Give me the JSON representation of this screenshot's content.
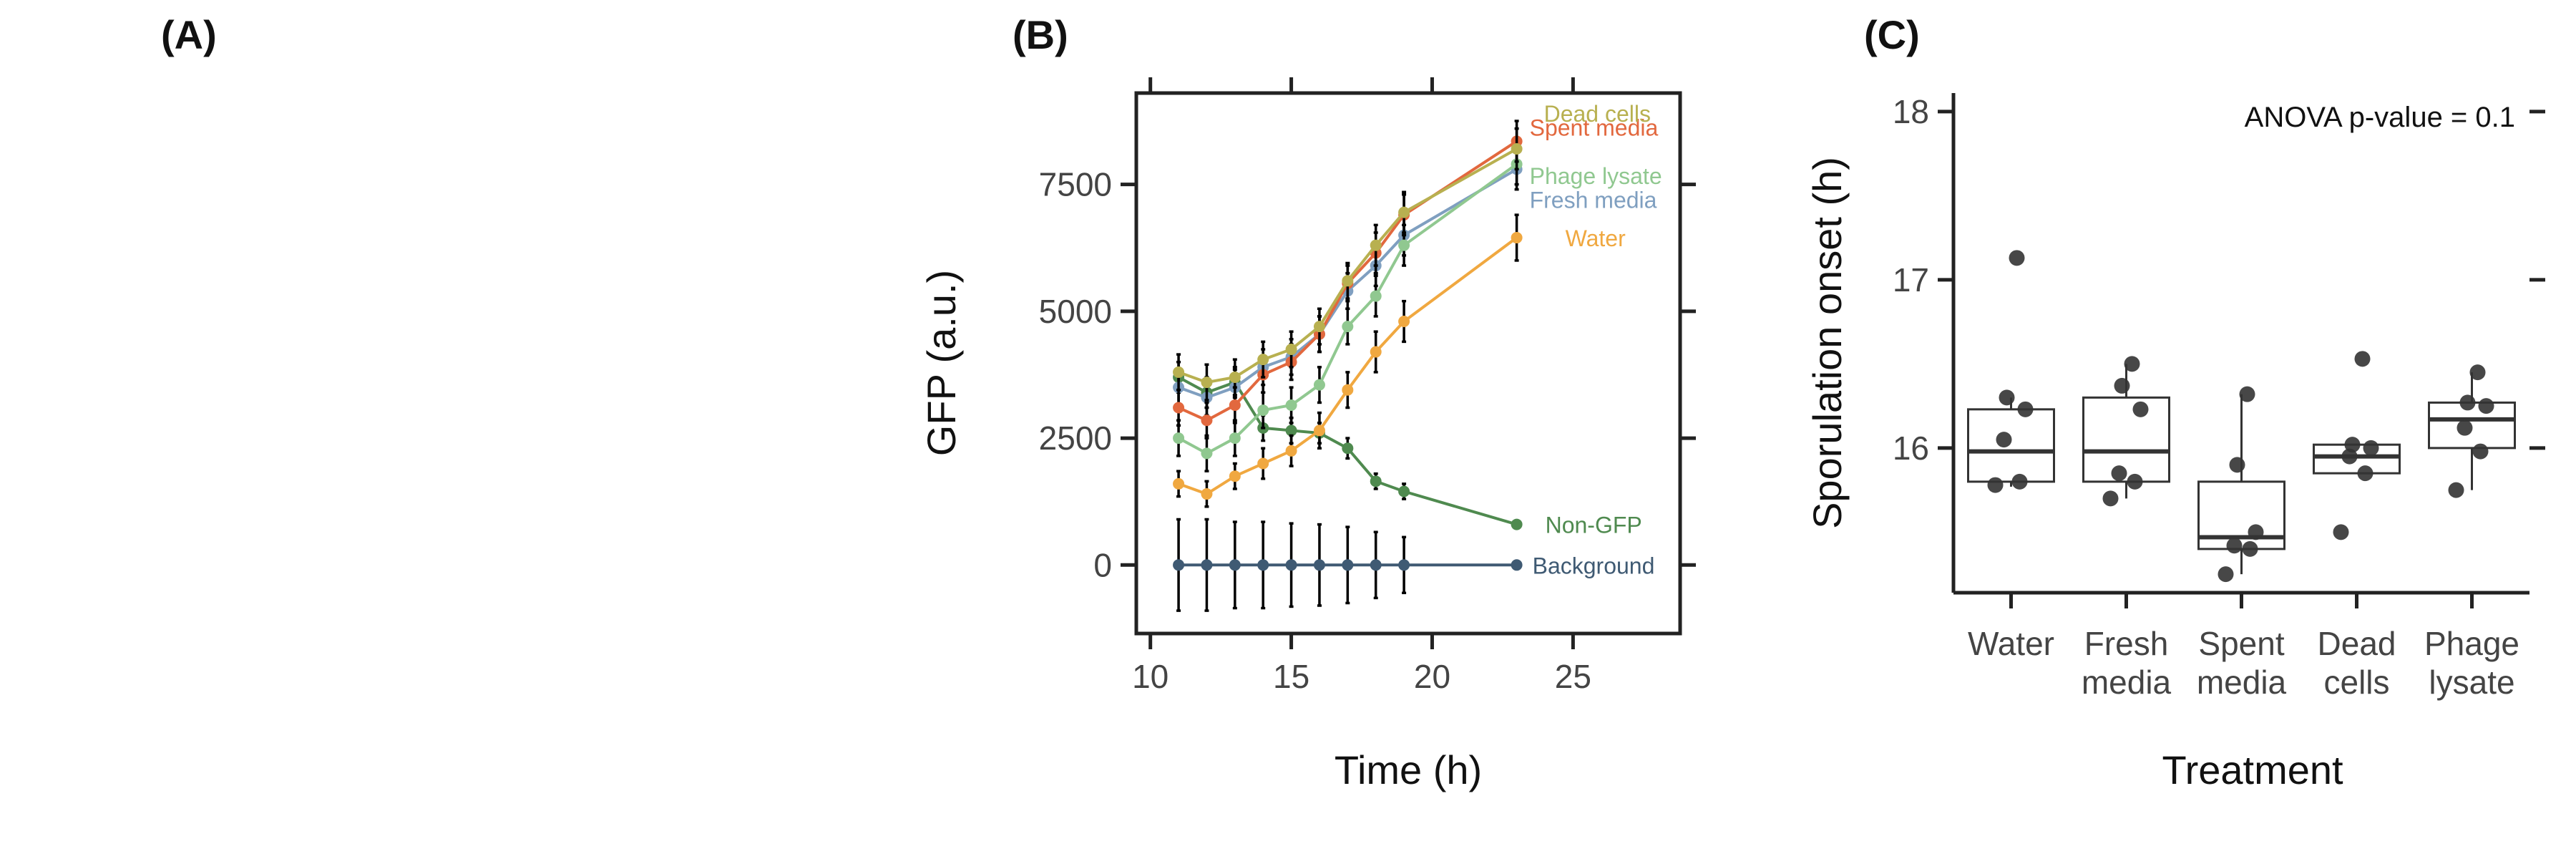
{
  "panels": {
    "a_label": "(A)",
    "b_label": "(B)",
    "c_label": "(C)"
  },
  "chart_data": [
    {
      "panel": "B",
      "type": "line",
      "xlabel": "Time (h)",
      "ylabel": "GFP (a.u.)",
      "xlim": [
        9.5,
        28.8
      ],
      "ylim": [
        -1350,
        9300
      ],
      "xticks": [
        10,
        15,
        20,
        25
      ],
      "yticks": [
        0,
        2500,
        5000,
        7500
      ],
      "grid": false,
      "legend": "direct labels at line ends",
      "x": [
        11,
        12,
        13,
        14,
        15,
        16,
        17,
        18,
        19,
        23
      ],
      "series": [
        {
          "name": "Background",
          "color": "#3f5a73",
          "values": [
            0,
            0,
            0,
            0,
            0,
            0,
            0,
            0,
            0,
            0
          ],
          "errors": [
            900,
            900,
            850,
            850,
            820,
            800,
            750,
            650,
            550,
            0
          ]
        },
        {
          "name": "Non-GFP",
          "color": "#4f8a4f",
          "values": [
            3700,
            3400,
            3600,
            2700,
            2650,
            2600,
            2300,
            1650,
            1450,
            800
          ],
          "errors": [
            300,
            300,
            300,
            250,
            250,
            200,
            200,
            150,
            150,
            50
          ]
        },
        {
          "name": "Water",
          "color": "#f0a840",
          "values": [
            1600,
            1400,
            1750,
            2000,
            2250,
            2650,
            3450,
            4200,
            4800,
            6450
          ],
          "errors": [
            250,
            250,
            250,
            300,
            300,
            350,
            350,
            400,
            400,
            450
          ]
        },
        {
          "name": "Fresh media",
          "color": "#7f9fc0",
          "values": [
            3500,
            3300,
            3500,
            3900,
            4100,
            4550,
            5400,
            5900,
            6500,
            7800
          ],
          "errors": [
            350,
            350,
            350,
            350,
            350,
            350,
            350,
            400,
            400,
            400
          ]
        },
        {
          "name": "Phage lysate",
          "color": "#90c890",
          "values": [
            2500,
            2200,
            2500,
            3050,
            3150,
            3550,
            4700,
            5300,
            6300,
            7900
          ],
          "errors": [
            350,
            350,
            350,
            350,
            350,
            350,
            350,
            400,
            400,
            400
          ]
        },
        {
          "name": "Spent media",
          "color": "#e2683e",
          "values": [
            3100,
            2850,
            3150,
            3750,
            4000,
            4550,
            5550,
            6150,
            6900,
            8350
          ],
          "errors": [
            350,
            350,
            350,
            350,
            350,
            350,
            350,
            400,
            400,
            400
          ]
        },
        {
          "name": "Dead cells",
          "color": "#b8b050",
          "values": [
            3800,
            3600,
            3700,
            4050,
            4250,
            4700,
            5600,
            6300,
            6950,
            8200
          ],
          "errors": [
            350,
            350,
            350,
            350,
            350,
            350,
            350,
            400,
            400,
            400
          ]
        }
      ]
    },
    {
      "panel": "C",
      "type": "box",
      "xlabel": "Treatment",
      "ylabel": "Sporulation onset (h)",
      "ylim": [
        15.14,
        18.11
      ],
      "yticks": [
        16,
        17,
        18
      ],
      "annotation": "ANOVA p-value = 0.1",
      "grid": false,
      "categories": [
        {
          "line1": "Water",
          "line2": ""
        },
        {
          "line1": "Fresh",
          "line2": "media"
        },
        {
          "line1": "Spent",
          "line2": "media"
        },
        {
          "line1": "Dead",
          "line2": "cells"
        },
        {
          "line1": "Phage",
          "line2": "lysate"
        }
      ],
      "boxes": [
        {
          "q1": 15.8,
          "median": 15.98,
          "q3": 16.23,
          "lower": 15.77,
          "upper": 16.3,
          "points": [
            15.78,
            15.8,
            16.05,
            16.23,
            16.3,
            17.13
          ]
        },
        {
          "q1": 15.8,
          "median": 15.98,
          "q3": 16.3,
          "lower": 15.7,
          "upper": 16.5,
          "points": [
            15.7,
            15.8,
            15.85,
            16.23,
            16.37,
            16.5
          ]
        },
        {
          "q1": 15.4,
          "median": 15.47,
          "q3": 15.8,
          "lower": 15.25,
          "upper": 16.32,
          "points": [
            15.25,
            15.4,
            15.42,
            15.5,
            15.9,
            16.32
          ]
        },
        {
          "q1": 15.85,
          "median": 15.95,
          "q3": 16.02,
          "lower": 15.85,
          "upper": 16.02,
          "points": [
            15.5,
            15.85,
            15.95,
            16.0,
            16.02,
            16.53
          ]
        },
        {
          "q1": 16.0,
          "median": 16.17,
          "q3": 16.27,
          "lower": 15.75,
          "upper": 16.45,
          "points": [
            15.75,
            15.98,
            16.12,
            16.25,
            16.27,
            16.45
          ]
        }
      ]
    }
  ]
}
